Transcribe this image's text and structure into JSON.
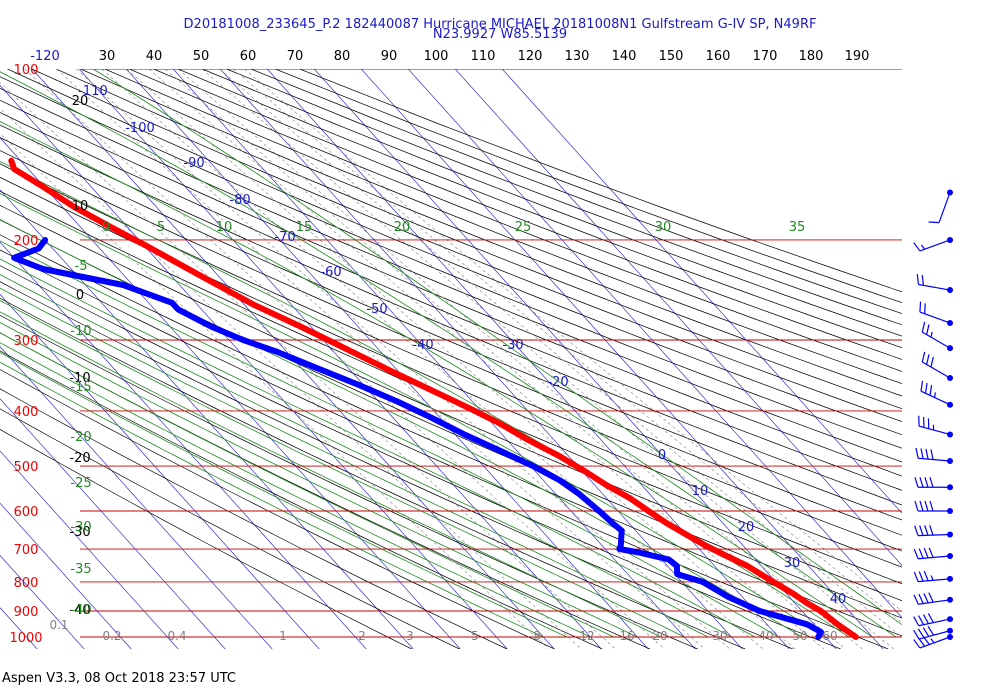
{
  "header": {
    "title": "D20181008_233645_P.2 182440087 Hurricane MICHAEL  20181008N1 Gulfstream G-IV SP, N49RF",
    "subtitle": "N23.9927 W85.5139"
  },
  "footer": {
    "text": "Aspen V3.3, 08 Oct 2018  23:57 UTC"
  },
  "colors": {
    "temperature": "#ff0000",
    "dewpoint": "#0000ff",
    "isobar": "#cc0000",
    "isotherm_label": "#1a1acc",
    "potential_temp_label": "#000000",
    "moist_adiabat": "#228b22",
    "mixing_ratio": "#808080"
  },
  "chart_data": {
    "type": "line",
    "title": "",
    "top_axis_ticks": [
      "-120",
      "30",
      "40",
      "50",
      "60",
      "70",
      "80",
      "90",
      "100",
      "110",
      "120",
      "130",
      "140",
      "150",
      "160",
      "170",
      "180",
      "190"
    ],
    "pressure_levels": [
      "100",
      "200",
      "300",
      "400",
      "500",
      "600",
      "700",
      "800",
      "900",
      "1000"
    ],
    "isotherm_labels": [
      "-110",
      "-100",
      "-90",
      "-80",
      "-70",
      "-60",
      "-50",
      "-40",
      "-30",
      "-20",
      "0",
      "10",
      "20",
      "30",
      "40"
    ],
    "potential_temp_labels": [
      "20",
      "10",
      "0",
      "-10",
      "-20",
      "-30",
      "-40"
    ],
    "moist_adiabat_top_labels": [
      "0",
      "5",
      "10",
      "15",
      "20",
      "25",
      "30",
      "35"
    ],
    "moist_adiabat_left_labels": [
      "-5",
      "-10",
      "-15",
      "-20",
      "-25",
      "-30",
      "-35",
      "-40"
    ],
    "mixing_ratio_labels": [
      "0.1",
      "0.2",
      "0.4",
      "1",
      "2",
      "3",
      "5",
      "8",
      "12",
      "16",
      "20",
      "30",
      "40",
      "50",
      "60"
    ],
    "series": [
      {
        "key": "temperature",
        "x": [
          -62.0,
          -63.0,
          -60.5,
          -57.5,
          -53.5,
          -49.5,
          -44.0,
          -38.0,
          -32.0,
          -27.0,
          -21.5,
          -17.0,
          -12.0,
          -8.5,
          -5.5,
          -2.0,
          0.5,
          2.5,
          5.0,
          6.5,
          8.0,
          10.0,
          12.0,
          14.5,
          17.0,
          18.5,
          20.0,
          21.5,
          22.5,
          24.0,
          25.0,
          26.5
        ],
        "y": [
          145,
          150,
          160,
          175,
          190,
          205,
          230,
          260,
          285,
          310,
          340,
          365,
          395,
          420,
          450,
          480,
          510,
          540,
          570,
          600,
          630,
          660,
          690,
          720,
          750,
          780,
          810,
          840,
          870,
          900,
          950,
          1000
        ]
      },
      {
        "key": "dewpoint",
        "x": [
          -70.0,
          -73.0,
          -80.0,
          -76.0,
          -62.0,
          -55.0,
          -55.0,
          -51.0,
          -47.0,
          -42.0,
          -37.0,
          -31.0,
          -26.0,
          -22.0,
          -18.0,
          -13.5,
          -9.5,
          -6.5,
          -5.0,
          -4.0,
          -3.5,
          -3.0,
          -6.0,
          -7.0,
          -3.5,
          1.5,
          2.0,
          0.5,
          4.5,
          7.0,
          11.0,
          18.5,
          20.0,
          18.5
        ],
        "y": [
          200,
          207,
          215,
          225,
          240,
          258,
          265,
          285,
          300,
          315,
          335,
          360,
          385,
          410,
          440,
          470,
          500,
          530,
          560,
          600,
          630,
          650,
          690,
          700,
          710,
          730,
          750,
          775,
          800,
          850,
          900,
          950,
          980,
          1000
        ]
      }
    ],
    "wind_barbs": [
      {
        "p": 165,
        "speed": 10,
        "dir": 200
      },
      {
        "p": 200,
        "speed": 15,
        "dir": 250
      },
      {
        "p": 245,
        "speed": 20,
        "dir": 280
      },
      {
        "p": 280,
        "speed": 20,
        "dir": 290
      },
      {
        "p": 310,
        "speed": 25,
        "dir": 300
      },
      {
        "p": 350,
        "speed": 30,
        "dir": 300
      },
      {
        "p": 390,
        "speed": 35,
        "dir": 295
      },
      {
        "p": 440,
        "speed": 35,
        "dir": 285
      },
      {
        "p": 490,
        "speed": 40,
        "dir": 275
      },
      {
        "p": 545,
        "speed": 40,
        "dir": 270
      },
      {
        "p": 600,
        "speed": 40,
        "dir": 270
      },
      {
        "p": 660,
        "speed": 40,
        "dir": 268
      },
      {
        "p": 720,
        "speed": 40,
        "dir": 265
      },
      {
        "p": 790,
        "speed": 35,
        "dir": 265
      },
      {
        "p": 860,
        "speed": 40,
        "dir": 262
      },
      {
        "p": 930,
        "speed": 40,
        "dir": 258
      },
      {
        "p": 975,
        "speed": 40,
        "dir": 255
      },
      {
        "p": 1000,
        "speed": 35,
        "dir": 250
      }
    ]
  }
}
